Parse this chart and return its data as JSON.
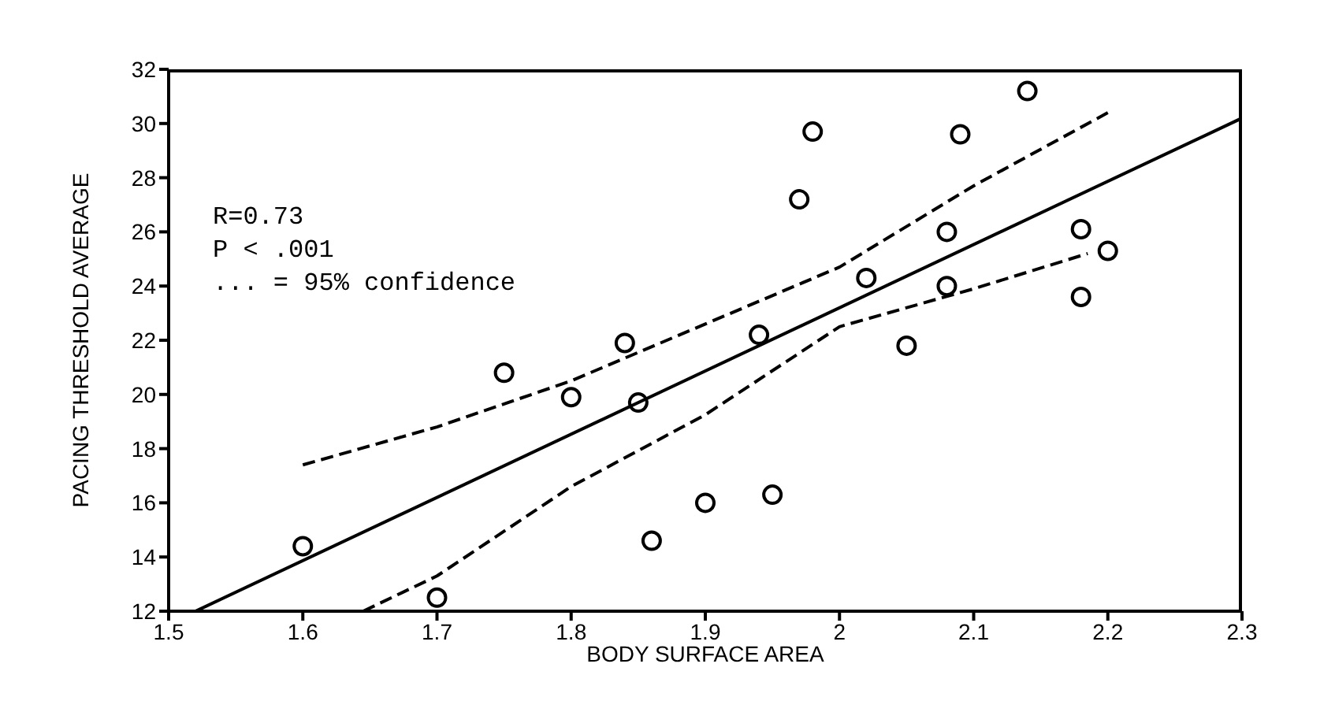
{
  "chart_data": {
    "type": "scatter",
    "xlabel": "BODY SURFACE AREA",
    "ylabel": "PACING THRESHOLD AVERAGE",
    "annotations": [
      "R=0.73",
      "P < .001",
      "... = 95% confidence"
    ],
    "xlim": [
      1.5,
      2.3
    ],
    "xticks": [
      1.5,
      1.6,
      1.7,
      1.8,
      1.9,
      2,
      2.1,
      2.2,
      2.3
    ],
    "ylim": [
      12,
      32
    ],
    "yticks": [
      12,
      14,
      16,
      18,
      20,
      22,
      24,
      26,
      28,
      30,
      32
    ],
    "grid": false,
    "legend": false,
    "series": [
      {
        "color": "#000000",
        "marker": "circle",
        "x": [
          1.6,
          1.7,
          1.75,
          1.8,
          1.84,
          1.85,
          1.86,
          1.9,
          1.94,
          1.95,
          1.97,
          1.98,
          2.02,
          2.05,
          2.08,
          2.08,
          2.09,
          2.14,
          2.18,
          2.18,
          2.2
        ],
        "values": [
          14.4,
          12.5,
          20.8,
          19.9,
          21.9,
          19.7,
          14.6,
          16.0,
          22.2,
          16.3,
          27.2,
          29.7,
          24.3,
          21.8,
          26.0,
          24.0,
          29.6,
          31.2,
          26.1,
          23.6,
          25.3
        ]
      },
      {
        "type": "line",
        "color": "#000000",
        "marker": "none",
        "line_style": "solid",
        "x": [
          1.52,
          2.3
        ],
        "values": [
          12,
          30.2
        ]
      },
      {
        "type": "line",
        "color": "#000000",
        "marker": "none",
        "line_style": "dashed",
        "x": [
          1.6,
          1.7,
          1.8,
          1.9,
          2.0,
          2.1,
          2.2
        ],
        "values": [
          17.4,
          18.8,
          20.5,
          22.6,
          24.7,
          27.7,
          30.4
        ]
      },
      {
        "type": "line",
        "color": "#000000",
        "marker": "none",
        "line_style": "dashed",
        "x": [
          1.645,
          1.7,
          1.8,
          1.9,
          2.0,
          2.1,
          2.185
        ],
        "values": [
          12,
          13.3,
          16.6,
          19.25,
          22.5,
          23.9,
          25.2
        ]
      }
    ]
  }
}
